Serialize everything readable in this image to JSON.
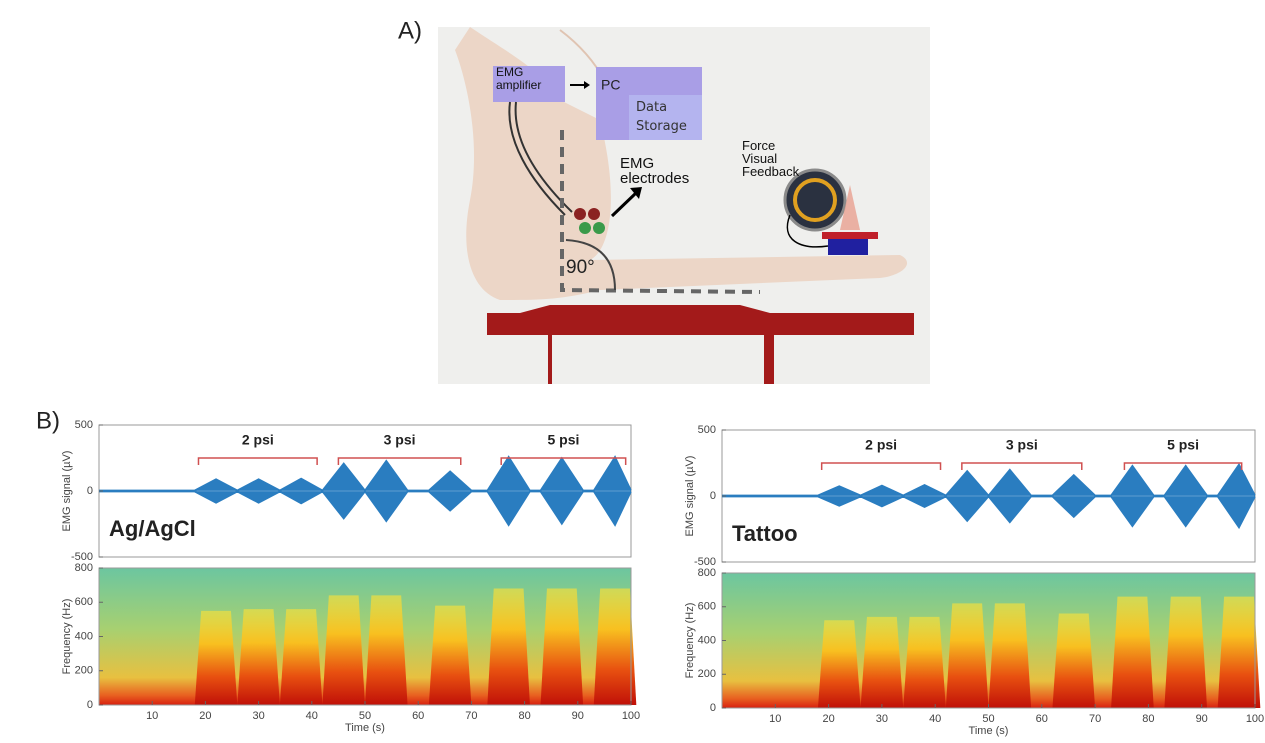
{
  "panel_a": {
    "label": "A)",
    "amplifier": "EMG amplifier",
    "pc": "PC",
    "storage": "Data Storage",
    "electrodes": "EMG electrodes",
    "feedback": "Force Visual Feedback",
    "angle": "90°"
  },
  "panel_b_label": "B)",
  "chart_data": [
    {
      "type": "area",
      "name": "Ag/AgCl",
      "ylabel": "EMG signal (µV)",
      "xlim": [
        0,
        100
      ],
      "ylim": [
        -500,
        500
      ],
      "yticks": [
        -500,
        0,
        500
      ],
      "x": [
        0,
        18,
        18,
        22,
        26,
        26,
        30,
        34,
        34,
        38,
        42,
        42,
        46,
        50,
        50,
        54,
        58,
        62,
        66,
        70,
        73,
        77,
        81,
        83,
        87,
        91,
        93,
        97,
        100
      ],
      "values": [
        5,
        5,
        5,
        90,
        5,
        5,
        90,
        5,
        5,
        95,
        5,
        5,
        210,
        5,
        5,
        230,
        5,
        5,
        150,
        5,
        5,
        260,
        5,
        5,
        250,
        5,
        5,
        260,
        5
      ],
      "color": "#2a7dc0",
      "annotations": [
        {
          "text": "2 psi",
          "x": [
            18.7,
            41
          ]
        },
        {
          "text": "3 psi",
          "x": [
            45,
            68
          ]
        },
        {
          "text": "5 psi",
          "x": [
            75.6,
            99
          ]
        }
      ]
    },
    {
      "type": "spectrogram",
      "ylabel": "Frequency (Hz)",
      "xlabel": "Time (s)",
      "xlim": [
        0,
        100
      ],
      "ylim": [
        0,
        800
      ],
      "yticks": [
        0,
        200,
        400,
        600,
        800
      ],
      "xticks": [
        10,
        20,
        30,
        40,
        50,
        60,
        70,
        80,
        90,
        100
      ],
      "x": [
        22,
        30,
        38,
        46,
        54,
        66,
        77,
        87,
        97
      ],
      "values": [
        550,
        560,
        560,
        640,
        640,
        580,
        680,
        680,
        680
      ]
    },
    {
      "type": "area",
      "name": "Tattoo",
      "ylabel": "EMG signal (µV)",
      "xlim": [
        0,
        100
      ],
      "ylim": [
        -500,
        500
      ],
      "yticks": [
        -500,
        0,
        500
      ],
      "x": [
        0,
        18,
        18,
        22,
        26,
        26,
        30,
        34,
        34,
        38,
        42,
        42,
        46,
        50,
        50,
        54,
        58,
        62,
        66,
        70,
        73,
        77,
        81,
        83,
        87,
        91,
        93,
        97,
        100
      ],
      "values": [
        5,
        5,
        5,
        75,
        5,
        5,
        80,
        5,
        5,
        85,
        5,
        5,
        190,
        5,
        5,
        200,
        5,
        5,
        160,
        5,
        5,
        230,
        5,
        5,
        230,
        5,
        5,
        240,
        5
      ],
      "color": "#2a7dc0",
      "annotations": [
        {
          "text": "2 psi",
          "x": [
            18.7,
            41
          ]
        },
        {
          "text": "3 psi",
          "x": [
            45,
            67.5
          ]
        },
        {
          "text": "5 psi",
          "x": [
            75.5,
            97.5
          ]
        }
      ]
    },
    {
      "type": "spectrogram",
      "ylabel": "Frequency (Hz)",
      "xlabel": "Time (s)",
      "xlim": [
        0,
        100
      ],
      "ylim": [
        0,
        800
      ],
      "yticks": [
        0,
        200,
        400,
        600,
        800
      ],
      "xticks": [
        10,
        20,
        30,
        40,
        50,
        60,
        70,
        80,
        90,
        100
      ],
      "x": [
        22,
        30,
        38,
        46,
        54,
        66,
        77,
        87,
        97
      ],
      "values": [
        520,
        540,
        540,
        620,
        620,
        560,
        660,
        660,
        660
      ]
    }
  ]
}
